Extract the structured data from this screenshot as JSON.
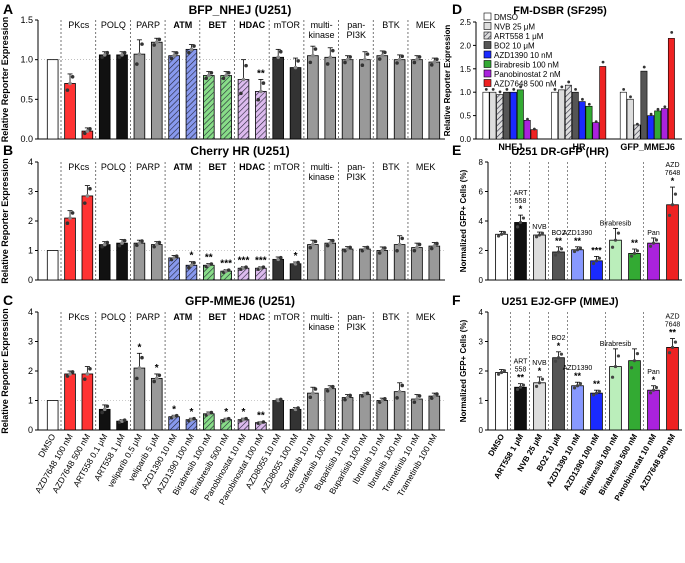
{
  "figure": {
    "panel_letters": [
      "A",
      "B",
      "C",
      "D",
      "E",
      "F"
    ]
  },
  "chart_data": [
    {
      "panel": "A",
      "type": "bar",
      "title": "BFP_NHEJ (U251)",
      "ylabel": "Relative Reporter Expression",
      "ylim": [
        0,
        1.5
      ],
      "yticks": [
        0,
        0.5,
        1.0,
        1.5
      ],
      "yticklabels": [
        "0.0",
        "0.5",
        "1.0",
        "1.5"
      ],
      "groups": [
        "",
        "PKcs",
        "POLQ",
        "PARP",
        "ATM",
        "BET",
        "HDAC",
        "mTOR",
        "multi-\nkinase",
        "pan-\nPI3K",
        "BTK",
        "MEK"
      ],
      "group_sizes": [
        1,
        2,
        2,
        2,
        2,
        2,
        2,
        2,
        2,
        2,
        2,
        2
      ],
      "values": [
        1.0,
        0.7,
        0.1,
        1.06,
        1.06,
        1.07,
        1.22,
        1.05,
        1.13,
        0.8,
        0.8,
        0.75,
        0.6,
        1.03,
        0.9,
        1.05,
        1.03,
        1.0,
        1.0,
        1.05,
        1.0,
        1.0,
        0.97
      ],
      "errors": [
        0,
        0.12,
        0.04,
        0.04,
        0.04,
        0.18,
        0.05,
        0.05,
        0.06,
        0.05,
        0.05,
        0.25,
        0.15,
        0.1,
        0.12,
        0.12,
        0.12,
        0.05,
        0.1,
        0.06,
        0.06,
        0.05,
        0.05
      ],
      "colors": [
        "#ffffff",
        "#ff3333",
        "#ff3333",
        "#111111",
        "#111111",
        "#999999",
        "#999999",
        "#8899ee",
        "#8899ee",
        "#88dd88",
        "#88dd88",
        "#ddbbee",
        "#ddbbee",
        "#333333",
        "#333333",
        "#999999",
        "#999999",
        "#999999",
        "#999999",
        "#999999",
        "#999999",
        "#999999",
        "#999999"
      ],
      "hatch": [
        0,
        0,
        0,
        0,
        0,
        0,
        0,
        1,
        1,
        1,
        1,
        1,
        1,
        0,
        0,
        0,
        0,
        0,
        0,
        0,
        0,
        0,
        0
      ],
      "stars": {
        "12": "**"
      }
    },
    {
      "panel": "B",
      "type": "bar",
      "title": "Cherry HR (U251)",
      "ylabel": "Relative Reporter Expression",
      "ylim": [
        0,
        4
      ],
      "yticks": [
        0,
        1,
        2,
        3,
        4
      ],
      "yticklabels": [
        "0",
        "1",
        "2",
        "3",
        "4"
      ],
      "groups": [
        "",
        "PKcs",
        "POLQ",
        "PARP",
        "ATM",
        "BET",
        "HDAC",
        "mTOR",
        "multi-\nkinase",
        "pan-\nPI3K",
        "BTK",
        "MEK"
      ],
      "group_sizes": [
        1,
        2,
        2,
        2,
        2,
        2,
        2,
        2,
        2,
        2,
        2,
        2
      ],
      "values": [
        1.0,
        2.1,
        2.85,
        1.2,
        1.25,
        1.25,
        1.2,
        0.75,
        0.5,
        0.5,
        0.3,
        0.4,
        0.4,
        0.7,
        0.55,
        1.2,
        1.25,
        1.05,
        1.05,
        1.0,
        1.2,
        1.1,
        1.15
      ],
      "errors": [
        0,
        0.25,
        0.35,
        0.1,
        0.12,
        0.1,
        0.1,
        0.08,
        0.12,
        0.06,
        0.05,
        0.05,
        0.05,
        0.08,
        0.06,
        0.15,
        0.12,
        0.08,
        0.08,
        0.12,
        0.3,
        0.15,
        0.12
      ],
      "colors": [
        "#ffffff",
        "#ff3333",
        "#ff3333",
        "#111111",
        "#111111",
        "#999999",
        "#999999",
        "#8899ee",
        "#8899ee",
        "#88dd88",
        "#88dd88",
        "#ddbbee",
        "#ddbbee",
        "#333333",
        "#333333",
        "#999999",
        "#999999",
        "#999999",
        "#999999",
        "#999999",
        "#999999",
        "#999999",
        "#999999"
      ],
      "hatch": [
        0,
        0,
        0,
        0,
        0,
        0,
        0,
        1,
        1,
        1,
        1,
        1,
        1,
        0,
        0,
        0,
        0,
        0,
        0,
        0,
        0,
        0,
        0
      ],
      "stars": {
        "8": "*",
        "9": "**",
        "10": "***",
        "11": "***",
        "12": "***",
        "14": "*"
      }
    },
    {
      "panel": "C",
      "type": "bar",
      "title": "GFP-MMEJ6 (U251)",
      "ylabel": "Relative Reporter Expression",
      "ylim": [
        0,
        4
      ],
      "yticks": [
        0,
        1,
        2,
        3,
        4
      ],
      "yticklabels": [
        "0",
        "1",
        "2",
        "3",
        "4"
      ],
      "groups": [
        "",
        "PKcs",
        "POLQ",
        "PARP",
        "ATM",
        "BET",
        "HDAC",
        "mTOR",
        "multi-\nkinase",
        "pan-\nPI3K",
        "BTK",
        "MEK"
      ],
      "group_sizes": [
        1,
        2,
        2,
        2,
        2,
        2,
        2,
        2,
        2,
        2,
        2,
        2
      ],
      "values": [
        1.0,
        1.9,
        1.9,
        0.7,
        0.3,
        2.1,
        1.75,
        0.45,
        0.35,
        0.55,
        0.35,
        0.35,
        0.25,
        1.0,
        0.7,
        1.25,
        1.4,
        1.1,
        1.2,
        1.0,
        1.3,
        1.05,
        1.15
      ],
      "errors": [
        0,
        0.1,
        0.25,
        0.15,
        0.05,
        0.5,
        0.15,
        0.05,
        0.05,
        0.06,
        0.05,
        0.05,
        0.03,
        0.05,
        0.06,
        0.2,
        0.1,
        0.1,
        0.06,
        0.08,
        0.3,
        0.15,
        0.1
      ],
      "colors": [
        "#ffffff",
        "#ff3333",
        "#ff3333",
        "#111111",
        "#111111",
        "#999999",
        "#999999",
        "#8899ee",
        "#8899ee",
        "#88dd88",
        "#88dd88",
        "#ddbbee",
        "#ddbbee",
        "#333333",
        "#333333",
        "#999999",
        "#999999",
        "#999999",
        "#999999",
        "#999999",
        "#999999",
        "#999999",
        "#999999"
      ],
      "hatch": [
        0,
        0,
        0,
        0,
        0,
        0,
        0,
        1,
        1,
        1,
        1,
        1,
        1,
        0,
        0,
        0,
        0,
        0,
        0,
        0,
        0,
        0,
        0
      ],
      "stars": {
        "5": "*",
        "6": "*",
        "7": "*",
        "8": "*",
        "10": "*",
        "11": "*",
        "12": "**"
      },
      "categories": [
        "DMSO",
        "AZD7648 100 nM",
        "AZD7648 500 nM",
        "ART558 0.1 μM",
        "ART558 1 μM",
        "veliparib 0.5 μM",
        "veliparib 5 μM",
        "AZD1390 10 nM",
        "AZD1390 100 nM",
        "Birabresib 100 nM",
        "Birabresib 500 nM",
        "Panobinostat 10 nM",
        "Panobinostat 100 nM",
        "AZD8055 10 nM",
        "AZD8055 100 nM",
        "Sorafenib 10 nM",
        "Sorafenib 100 nM",
        "Buparlisib 10 nM",
        "Buparlisib 100 nM",
        "Ibrutinib 10 nM",
        "Ibrutinib 100 nM",
        "Trametinib 10 nM",
        "Trametinib 100 nM"
      ]
    },
    {
      "panel": "D",
      "type": "bar",
      "title": "FM-DSBR (SF295)",
      "ylabel": "Relative Reporter Expression",
      "ylim": [
        0,
        2.5
      ],
      "yticks": [
        0,
        0.5,
        1.0,
        1.5,
        2.0,
        2.5
      ],
      "yticklabels": [
        "0.0",
        "0.5",
        "1.0",
        "1.5",
        "2.0",
        "2.5"
      ],
      "categories": [
        "NHEJ",
        "HR",
        "GFP_MMEJ6"
      ],
      "legend": [
        "DMSO",
        "NVB 25 μM",
        "ART558 1 μM",
        "BO2 10 μM",
        "AZD1390 10 nM",
        "Birabresib 100 nM",
        "Panobinostat 2 nM",
        "AZD7648 500 nM"
      ],
      "legend_colors": [
        "#ffffff",
        "#dddddd",
        "#dddddd",
        "#555555",
        "#1a2aff",
        "#33aa33",
        "#aa22dd",
        "#ee2222"
      ],
      "legend_hatch": [
        0,
        0,
        1,
        0,
        0,
        0,
        0,
        0
      ],
      "series_values": [
        [
          1.0,
          1.0,
          1.0
        ],
        [
          1.0,
          1.05,
          0.85
        ],
        [
          0.95,
          1.15,
          0.3
        ],
        [
          1.0,
          1.0,
          1.45
        ],
        [
          1.0,
          0.8,
          0.5
        ],
        [
          1.05,
          0.7,
          0.6
        ],
        [
          0.4,
          0.35,
          0.65
        ],
        [
          0.2,
          1.55,
          2.15
        ]
      ]
    },
    {
      "panel": "E",
      "type": "bar",
      "title": "U251 DR-GFP (HR)",
      "ylabel": "Normalized GFP+ Cells (%)",
      "ylim": [
        0,
        8
      ],
      "yticks": [
        0,
        2,
        4,
        6,
        8
      ],
      "yticklabels": [
        "0",
        "2",
        "4",
        "6",
        "8"
      ],
      "values": [
        3.1,
        3.9,
        3.05,
        1.9,
        2.05,
        1.3,
        2.7,
        1.8,
        2.5,
        5.1
      ],
      "errors": [
        0.2,
        0.5,
        0.2,
        0.35,
        0.2,
        0.3,
        0.8,
        0.3,
        0.35,
        1.2
      ],
      "colors": [
        "#ffffff",
        "#111111",
        "#dddddd",
        "#555555",
        "#8899ff",
        "#1a2aff",
        "#bbeebb",
        "#33aa33",
        "#aa22dd",
        "#ee2222"
      ],
      "annotations": [
        "",
        "ART\n558",
        "NVB",
        "BO2",
        "AZD1390",
        "",
        "Birabresib",
        "",
        "Pan",
        "AZD\n7648"
      ],
      "stars": [
        "",
        "*",
        "",
        "**",
        "**",
        "***",
        "",
        "**",
        "",
        "*"
      ]
    },
    {
      "panel": "F",
      "type": "bar",
      "title": "U251 EJ2-GFP (MMEJ)",
      "ylabel": "Normalized GFP+ Cells (%)",
      "ylim": [
        0,
        4
      ],
      "yticks": [
        0,
        1,
        2,
        3,
        4
      ],
      "yticklabels": [
        "0",
        "1",
        "2",
        "3",
        "4"
      ],
      "categories": [
        "DMSO",
        "ART558 1 μM",
        "NVB 25 μM",
        "BO2 10 μM",
        "AZD1390 10 nM",
        "AZD1390 100 nM",
        "Birabresib 100 nM",
        "Birabresib 500 nM",
        "Panobinostat 10 nM",
        "AZD7648 500 nM"
      ],
      "values": [
        1.95,
        1.45,
        1.6,
        2.45,
        1.5,
        1.25,
        2.15,
        2.35,
        1.35,
        2.8
      ],
      "errors": [
        0.1,
        0.12,
        0.2,
        0.2,
        0.12,
        0.1,
        0.6,
        0.4,
        0.15,
        0.3
      ],
      "colors": [
        "#ffffff",
        "#111111",
        "#dddddd",
        "#555555",
        "#8899ff",
        "#1a2aff",
        "#bbeebb",
        "#33aa33",
        "#aa22dd",
        "#ee2222"
      ],
      "annotations": [
        "",
        "ART\n558",
        "NVB",
        "BO2",
        "AZD1390",
        "",
        "Birabresib",
        "",
        "Pan",
        "AZD\n7648"
      ],
      "stars": [
        "",
        "**",
        "*",
        "*",
        "**",
        "**",
        "",
        "",
        "*",
        "**"
      ]
    }
  ]
}
